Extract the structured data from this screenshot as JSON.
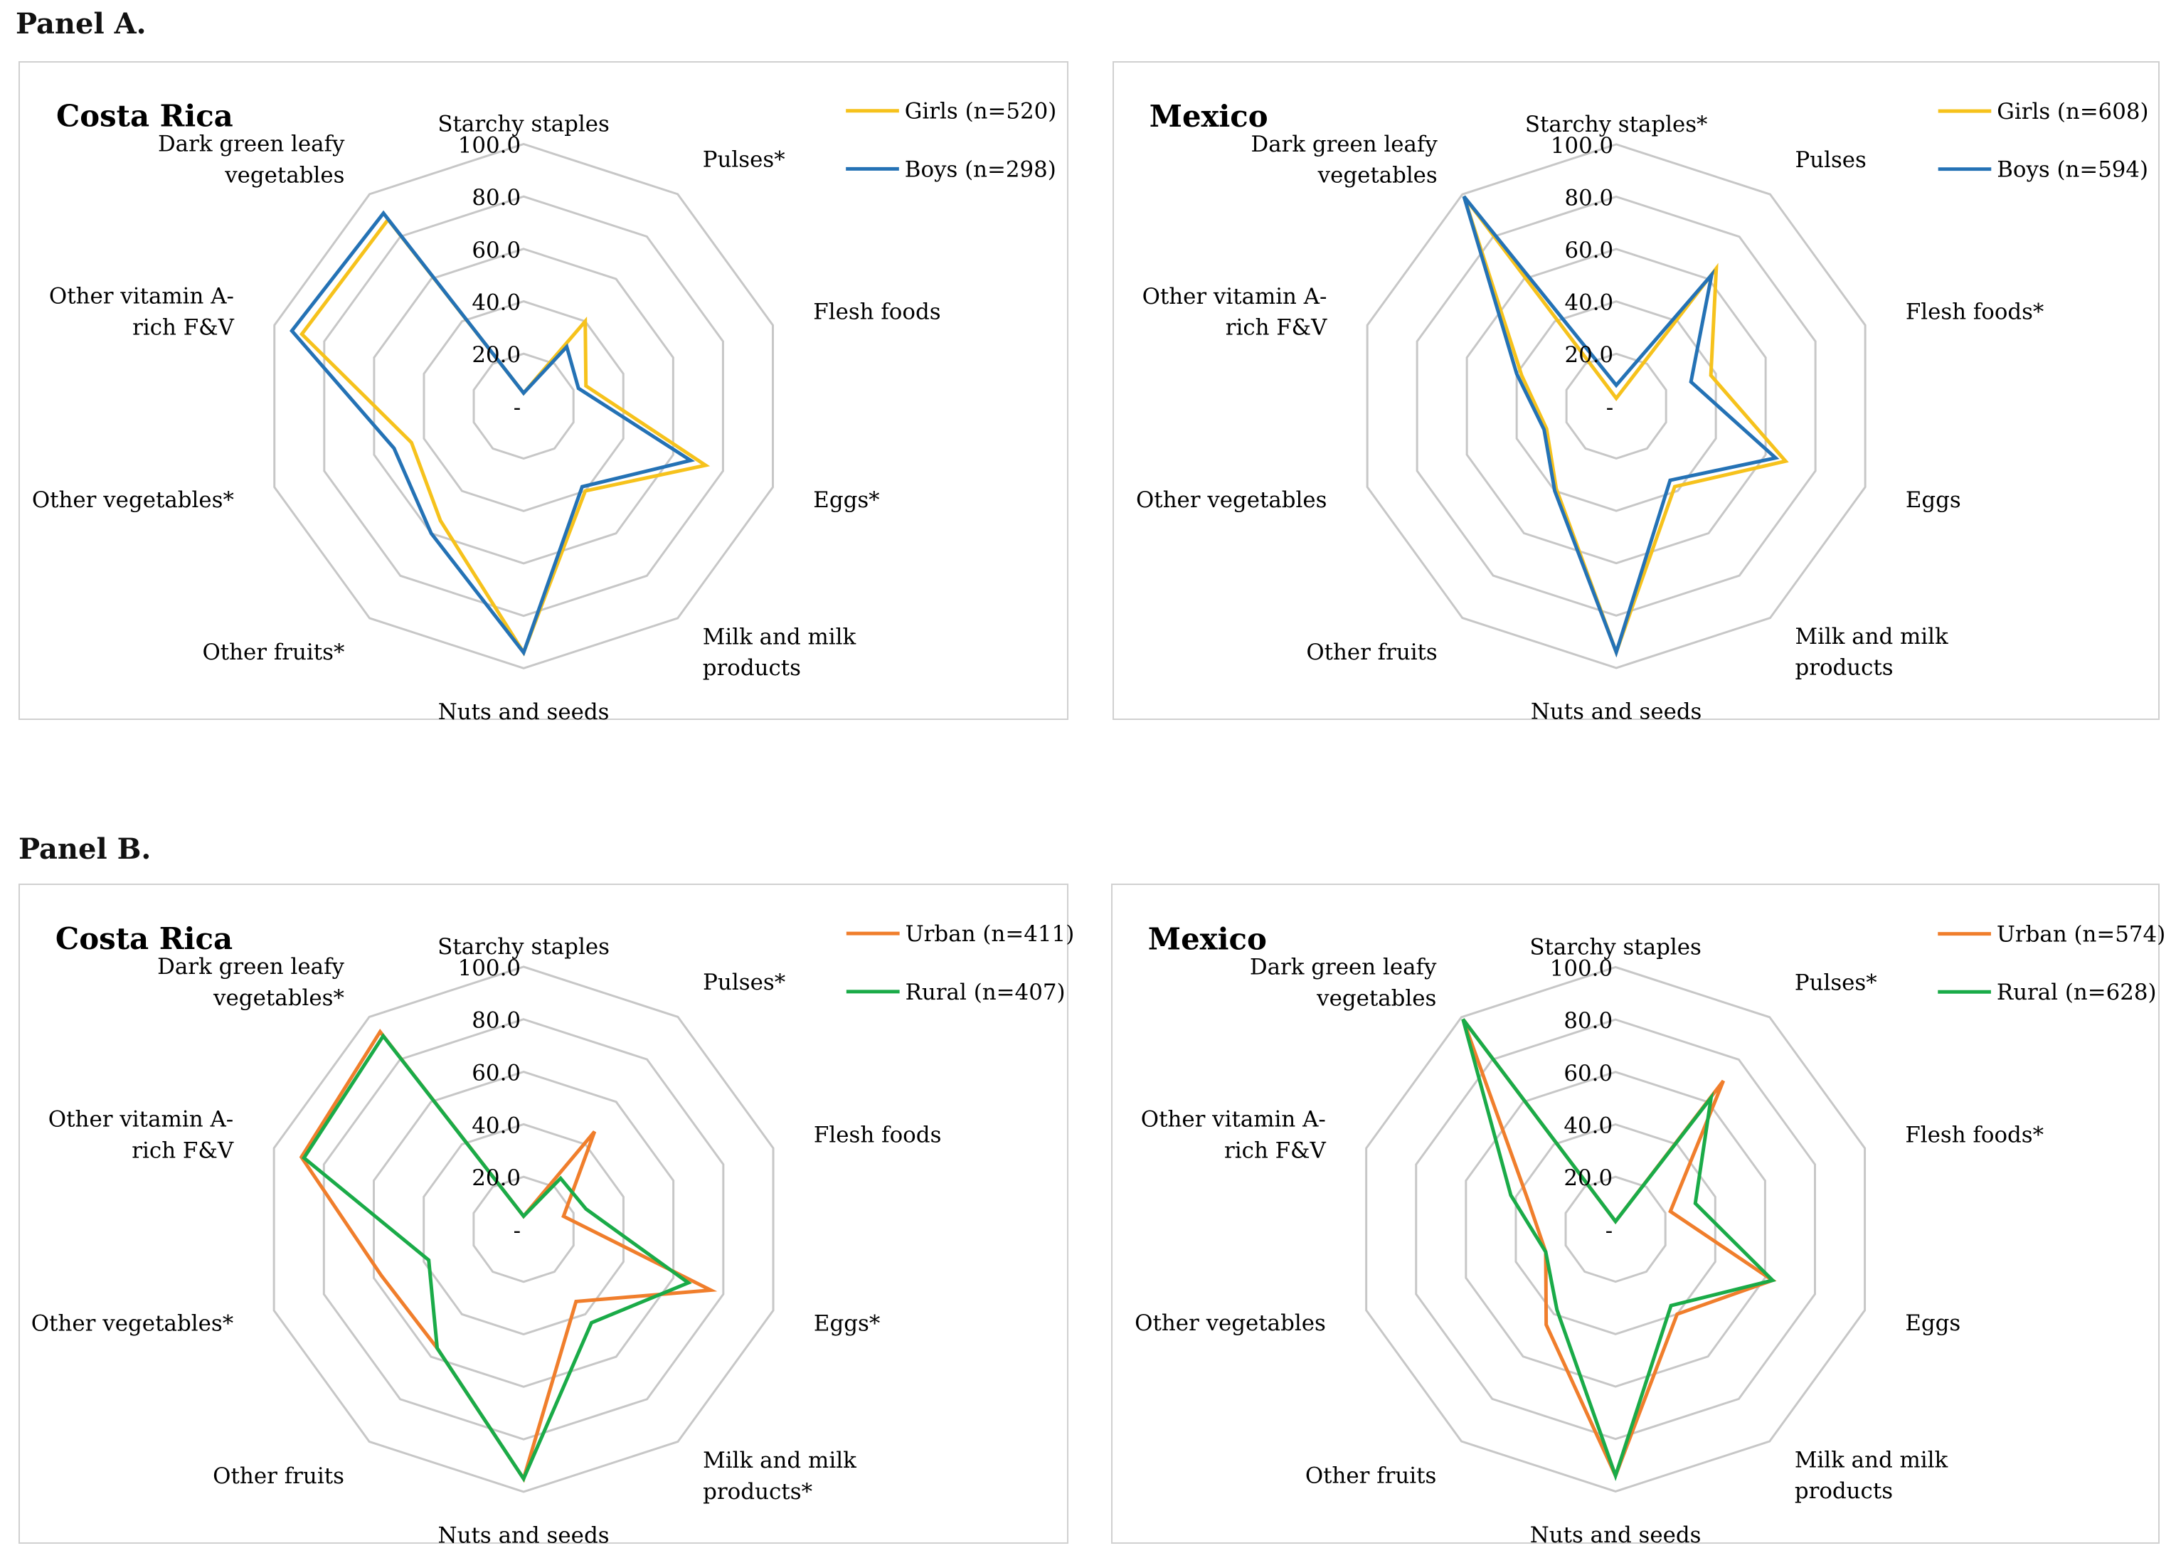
{
  "panels": [
    {
      "title": "Panel A."
    },
    {
      "title": "Panel B."
    }
  ],
  "colors": {
    "girls": "#f6c21c",
    "boys": "#2472b5",
    "urban": "#f07e2c",
    "rural": "#1aab48",
    "grid": "#c7c7c7",
    "box": "#d0d0d0"
  },
  "chart_data": [
    {
      "type": "radar",
      "panel": "Panel A.",
      "title": "Costa Rica",
      "categories": [
        [
          "Starchy staples"
        ],
        [
          "Pulses*"
        ],
        [
          "Flesh foods"
        ],
        [
          "Eggs*"
        ],
        [
          "Milk and milk",
          "products"
        ],
        [
          "Nuts and seeds"
        ],
        [
          "Other fruits*"
        ],
        [
          "Other vegetables*"
        ],
        [
          "Other vitamin A-",
          "rich F&V"
        ],
        [
          "Dark green leafy",
          "vegetables"
        ]
      ],
      "tick_labels": [
        "-",
        "20.0",
        "40.0",
        "60.0",
        "80.0",
        "100.0"
      ],
      "rlim": [
        0,
        100
      ],
      "legend_position": "top-right",
      "series": [
        {
          "name": "Girls (n=520)",
          "color": "#f6c21c",
          "values": [
            5,
            40,
            25,
            73,
            40,
            94,
            54,
            45,
            89,
            88
          ]
        },
        {
          "name": "Boys (n=298)",
          "color": "#2472b5",
          "values": [
            5,
            28,
            22,
            67,
            38,
            94,
            60,
            52,
            93,
            91
          ]
        }
      ]
    },
    {
      "type": "radar",
      "panel": "Panel A.",
      "title": "Mexico",
      "categories": [
        [
          "Starchy staples*"
        ],
        [
          "Pulses"
        ],
        [
          "Flesh foods*"
        ],
        [
          "Eggs"
        ],
        [
          "Milk and milk",
          "products"
        ],
        [
          "Nuts and seeds"
        ],
        [
          "Other fruits"
        ],
        [
          "Other vegetables"
        ],
        [
          "Other vitamin A-",
          "rich F&V"
        ],
        [
          "Dark green leafy",
          "vegetables"
        ]
      ],
      "tick_labels": [
        "-",
        "20.0",
        "40.0",
        "60.0",
        "80.0",
        "100.0"
      ],
      "rlim": [
        0,
        100
      ],
      "legend_position": "top-right",
      "series": [
        {
          "name": "Girls (n=608)",
          "color": "#f6c21c",
          "values": [
            3,
            65,
            38,
            68,
            38,
            94,
            39,
            28,
            38,
            99
          ]
        },
        {
          "name": "Boys (n=594)",
          "color": "#2472b5",
          "values": [
            8,
            62,
            30,
            64,
            35,
            94,
            40,
            29,
            40,
            99
          ]
        }
      ]
    },
    {
      "type": "radar",
      "panel": "Panel B.",
      "title": "Costa Rica",
      "categories": [
        [
          "Starchy staples"
        ],
        [
          "Pulses*"
        ],
        [
          "Flesh foods"
        ],
        [
          "Eggs*"
        ],
        [
          "Milk and milk",
          "products*"
        ],
        [
          "Nuts and seeds"
        ],
        [
          "Other fruits"
        ],
        [
          "Other vegetables*"
        ],
        [
          "Other vitamin A-",
          "rich F&V"
        ],
        [
          "Dark green leafy",
          "vegetables*"
        ]
      ],
      "tick_labels": [
        "-",
        "20.0",
        "40.0",
        "60.0",
        "80.0",
        "100.0"
      ],
      "rlim": [
        0,
        100
      ],
      "legend_position": "top-right",
      "series": [
        {
          "name": "Urban (n=411)",
          "color": "#f07e2c",
          "values": [
            5,
            46,
            16,
            75,
            34,
            95,
            56,
            57,
            89,
            93
          ]
        },
        {
          "name": "Rural (n=407)",
          "color": "#1aab48",
          "values": [
            5,
            24,
            25,
            66,
            44,
            95,
            56,
            38,
            88,
            91
          ]
        }
      ]
    },
    {
      "type": "radar",
      "panel": "Panel B.",
      "title": "Mexico",
      "categories": [
        [
          "Starchy staples"
        ],
        [
          "Pulses*"
        ],
        [
          "Flesh foods*"
        ],
        [
          "Eggs"
        ],
        [
          "Milk and milk",
          "products"
        ],
        [
          "Nuts and seeds"
        ],
        [
          "Other fruits"
        ],
        [
          "Other vegetables"
        ],
        [
          "Other vitamin A-",
          "rich F&V"
        ],
        [
          "Dark green leafy",
          "vegetables"
        ]
      ],
      "tick_labels": [
        "-",
        "20.0",
        "40.0",
        "60.0",
        "80.0",
        "100.0"
      ],
      "rlim": [
        0,
        100
      ],
      "legend_position": "top-right",
      "series": [
        {
          "name": "Urban (n=574)",
          "color": "#f07e2c",
          "values": [
            3,
            70,
            22,
            63,
            40,
            94,
            45,
            28,
            35,
            99
          ]
        },
        {
          "name": "Rural (n=628)",
          "color": "#1aab48",
          "values": [
            3,
            62,
            32,
            63,
            36,
            94,
            38,
            28,
            42,
            99
          ]
        }
      ]
    }
  ]
}
